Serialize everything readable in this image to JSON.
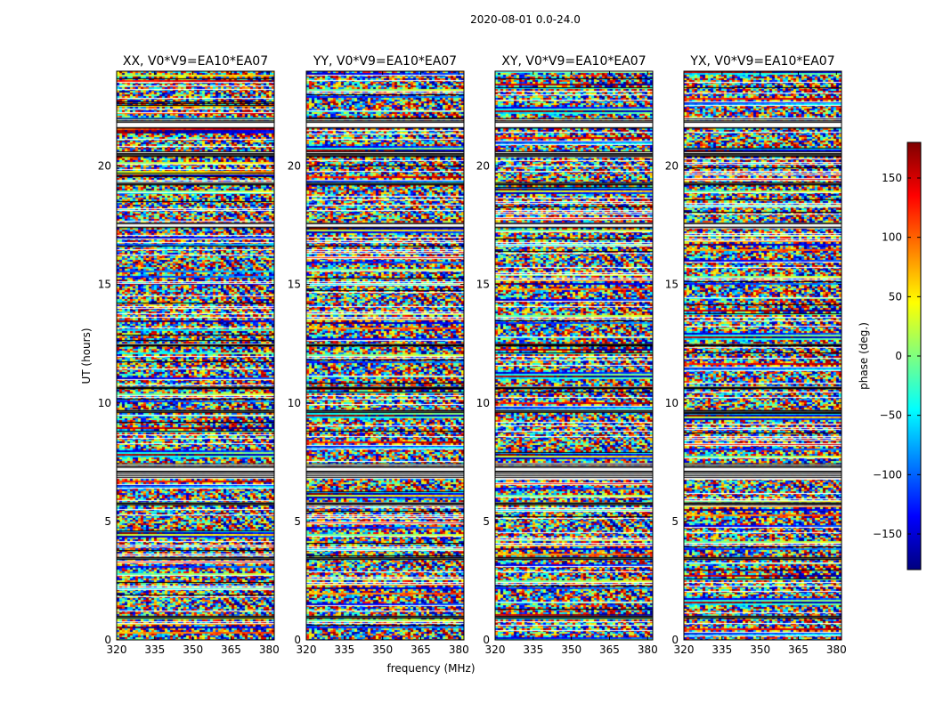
{
  "suptitle": "2020-08-01 0.0-24.0",
  "chart_data": {
    "type": "heatmap",
    "xlabel": "frequency (MHz)",
    "ylabel": "UT (hours)",
    "xlim": [
      320,
      382
    ],
    "ylim": [
      0,
      24
    ],
    "xticks": [
      320,
      335,
      350,
      365,
      380
    ],
    "yticks": [
      0,
      5,
      10,
      15,
      20
    ],
    "panels": [
      {
        "title": "XX, V0*V9=EA10*EA07"
      },
      {
        "title": "YY, V0*V9=EA10*EA07"
      },
      {
        "title": "XY, V0*V9=EA10*EA07"
      },
      {
        "title": "YX, V0*V9=EA10*EA07"
      }
    ],
    "colorbar": {
      "label": "phase (deg.)",
      "range": [
        -180,
        180
      ],
      "ticks": [
        -150,
        -100,
        -50,
        0,
        50,
        100,
        150
      ],
      "tick_labels": [
        "−150",
        "−100",
        "−50",
        "0",
        "50",
        "100",
        "150"
      ],
      "colormap": "jet",
      "colors": [
        "#00007f",
        "#0000ff",
        "#007fff",
        "#00ffff",
        "#7fff7f",
        "#ffff00",
        "#ff7f00",
        "#ff0000",
        "#7f0000"
      ]
    },
    "flagged_gaps_hours": [
      [
        0.92,
        1.02
      ],
      [
        3.4,
        3.5
      ],
      [
        5.7,
        5.8
      ],
      [
        7.1,
        7.32
      ],
      [
        9.6,
        9.7
      ],
      [
        10.6,
        10.68
      ],
      [
        12.4,
        12.48
      ],
      [
        17.4,
        17.6
      ],
      [
        19.2,
        19.3
      ],
      [
        20.4,
        20.5
      ],
      [
        21.6,
        21.88
      ]
    ],
    "dense_bands_hours": [
      [
        6.82,
        7.1
      ],
      [
        7.32,
        7.45
      ],
      [
        20.5,
        20.62
      ],
      [
        21.88,
        22.0
      ]
    ]
  }
}
